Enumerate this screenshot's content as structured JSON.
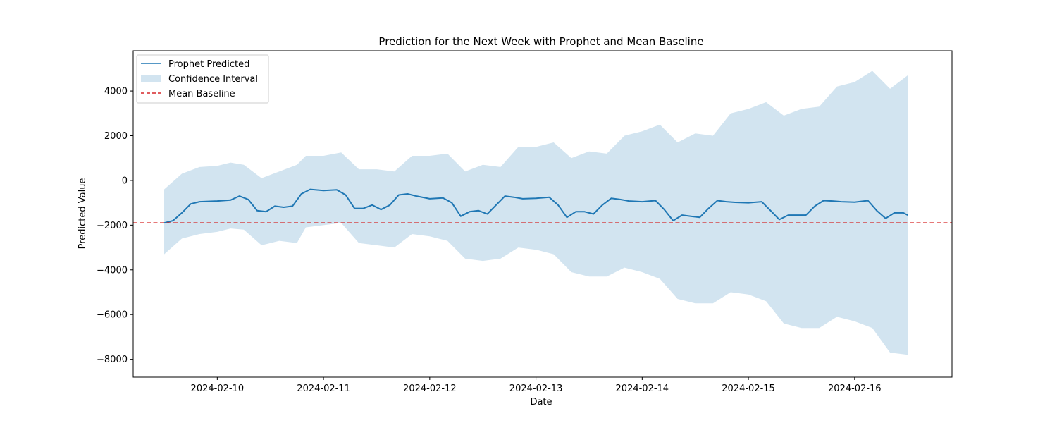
{
  "chart_data": {
    "type": "line",
    "title": "Prediction for the Next Week with Prophet and Mean Baseline",
    "xlabel": "Date",
    "ylabel": "Predicted Value",
    "xlim": [
      "2024-02-09 05:00",
      "2024-02-16 22:00"
    ],
    "ylim": [
      -8800,
      5800
    ],
    "grid": false,
    "legend_position": "top-left",
    "x_ticks": [
      "2024-02-10",
      "2024-02-11",
      "2024-02-12",
      "2024-02-13",
      "2024-02-14",
      "2024-02-15",
      "2024-02-16"
    ],
    "y_ticks": [
      4000,
      2000,
      0,
      -2000,
      -4000,
      -6000,
      -8000
    ],
    "y_tick_labels": [
      "4000",
      "2000",
      "0",
      "−2000",
      "−4000",
      "−6000",
      "−8000"
    ],
    "series": [
      {
        "name": "Prophet Predicted",
        "kind": "line",
        "color": "#1f77b4",
        "x": [
          "2024-02-09 12:00",
          "2024-02-09 14:00",
          "2024-02-09 16:00",
          "2024-02-09 18:00",
          "2024-02-09 20:00",
          "2024-02-10 00:00",
          "2024-02-10 03:00",
          "2024-02-10 05:00",
          "2024-02-10 07:00",
          "2024-02-10 09:00",
          "2024-02-10 11:00",
          "2024-02-10 13:00",
          "2024-02-10 15:00",
          "2024-02-10 17:00",
          "2024-02-10 19:00",
          "2024-02-10 21:00",
          "2024-02-11 00:00",
          "2024-02-11 03:00",
          "2024-02-11 05:00",
          "2024-02-11 07:00",
          "2024-02-11 09:00",
          "2024-02-11 11:00",
          "2024-02-11 13:00",
          "2024-02-11 15:00",
          "2024-02-11 17:00",
          "2024-02-11 19:00",
          "2024-02-11 21:00",
          "2024-02-12 00:00",
          "2024-02-12 03:00",
          "2024-02-12 05:00",
          "2024-02-12 07:00",
          "2024-02-12 09:00",
          "2024-02-12 11:00",
          "2024-02-12 13:00",
          "2024-02-12 15:00",
          "2024-02-12 17:00",
          "2024-02-12 19:00",
          "2024-02-12 21:00",
          "2024-02-13 00:00",
          "2024-02-13 03:00",
          "2024-02-13 05:00",
          "2024-02-13 07:00",
          "2024-02-13 09:00",
          "2024-02-13 11:00",
          "2024-02-13 13:00",
          "2024-02-13 15:00",
          "2024-02-13 17:00",
          "2024-02-13 19:00",
          "2024-02-13 21:00",
          "2024-02-14 00:00",
          "2024-02-14 03:00",
          "2024-02-14 05:00",
          "2024-02-14 07:00",
          "2024-02-14 09:00",
          "2024-02-14 11:00",
          "2024-02-14 13:00",
          "2024-02-14 15:00",
          "2024-02-14 17:00",
          "2024-02-14 19:00",
          "2024-02-14 21:00",
          "2024-02-15 00:00",
          "2024-02-15 03:00",
          "2024-02-15 05:00",
          "2024-02-15 07:00",
          "2024-02-15 09:00",
          "2024-02-15 11:00",
          "2024-02-15 13:00",
          "2024-02-15 15:00",
          "2024-02-15 17:00",
          "2024-02-15 19:00",
          "2024-02-15 21:00",
          "2024-02-16 00:00",
          "2024-02-16 03:00",
          "2024-02-16 05:00",
          "2024-02-16 07:00",
          "2024-02-16 09:00",
          "2024-02-16 11:00",
          "2024-02-16 12:00"
        ],
        "values": [
          -1900,
          -1800,
          -1450,
          -1050,
          -950,
          -920,
          -880,
          -700,
          -850,
          -1350,
          -1400,
          -1150,
          -1200,
          -1150,
          -600,
          -400,
          -450,
          -420,
          -650,
          -1250,
          -1250,
          -1100,
          -1300,
          -1100,
          -650,
          -600,
          -700,
          -820,
          -780,
          -1000,
          -1600,
          -1400,
          -1350,
          -1500,
          -1100,
          -700,
          -750,
          -820,
          -800,
          -750,
          -1100,
          -1650,
          -1400,
          -1400,
          -1500,
          -1100,
          -800,
          -850,
          -920,
          -950,
          -900,
          -1300,
          -1800,
          -1550,
          -1600,
          -1650,
          -1250,
          -900,
          -950,
          -980,
          -1000,
          -950,
          -1350,
          -1750,
          -1550,
          -1550,
          -1550,
          -1150,
          -900,
          -920,
          -950,
          -970,
          -900,
          -1350,
          -1700,
          -1450,
          -1450,
          -1550
        ]
      },
      {
        "name": "Confidence Interval",
        "kind": "band",
        "color": "#1f77b4",
        "opacity": 0.2,
        "x": [
          "2024-02-09 12:00",
          "2024-02-09 16:00",
          "2024-02-09 20:00",
          "2024-02-10 00:00",
          "2024-02-10 03:00",
          "2024-02-10 06:00",
          "2024-02-10 10:00",
          "2024-02-10 14:00",
          "2024-02-10 18:00",
          "2024-02-10 20:00",
          "2024-02-11 00:00",
          "2024-02-11 04:00",
          "2024-02-11 08:00",
          "2024-02-11 12:00",
          "2024-02-11 16:00",
          "2024-02-11 20:00",
          "2024-02-12 00:00",
          "2024-02-12 04:00",
          "2024-02-12 08:00",
          "2024-02-12 12:00",
          "2024-02-12 16:00",
          "2024-02-12 20:00",
          "2024-02-13 00:00",
          "2024-02-13 04:00",
          "2024-02-13 08:00",
          "2024-02-13 12:00",
          "2024-02-13 16:00",
          "2024-02-13 20:00",
          "2024-02-14 00:00",
          "2024-02-14 04:00",
          "2024-02-14 08:00",
          "2024-02-14 12:00",
          "2024-02-14 16:00",
          "2024-02-14 20:00",
          "2024-02-15 00:00",
          "2024-02-15 04:00",
          "2024-02-15 08:00",
          "2024-02-15 12:00",
          "2024-02-15 16:00",
          "2024-02-15 20:00",
          "2024-02-16 00:00",
          "2024-02-16 04:00",
          "2024-02-16 08:00",
          "2024-02-16 12:00"
        ],
        "upper": [
          -400,
          300,
          600,
          650,
          800,
          700,
          100,
          400,
          700,
          1100,
          1100,
          1250,
          500,
          500,
          400,
          1100,
          1100,
          1200,
          400,
          700,
          600,
          1500,
          1500,
          1700,
          1000,
          1300,
          1200,
          2000,
          2200,
          2500,
          1700,
          2100,
          2000,
          3000,
          3200,
          3500,
          2900,
          3200,
          3300,
          4200,
          4400,
          4900,
          4100,
          4700
        ],
        "lower": [
          -3300,
          -2600,
          -2400,
          -2300,
          -2150,
          -2200,
          -2900,
          -2700,
          -2800,
          -2100,
          -2000,
          -1900,
          -2800,
          -2900,
          -3000,
          -2400,
          -2500,
          -2700,
          -3500,
          -3600,
          -3500,
          -3000,
          -3100,
          -3300,
          -4100,
          -4300,
          -4300,
          -3900,
          -4100,
          -4400,
          -5300,
          -5500,
          -5500,
          -5000,
          -5100,
          -5400,
          -6400,
          -6600,
          -6600,
          -6100,
          -6300,
          -6600,
          -7700,
          -7800
        ]
      },
      {
        "name": "Mean Baseline",
        "kind": "hline",
        "color": "#d62728",
        "dashed": true,
        "y": -1900
      }
    ]
  }
}
